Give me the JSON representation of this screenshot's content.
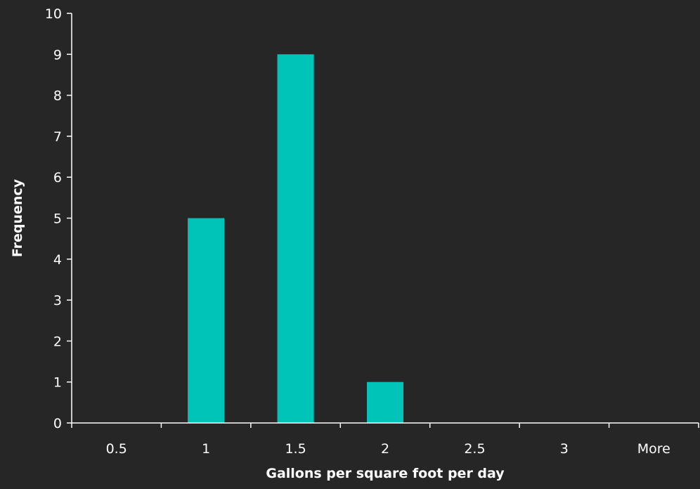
{
  "chart_data": {
    "type": "bar",
    "categories": [
      "0.5",
      "1",
      "1.5",
      "2",
      "2.5",
      "3",
      "More"
    ],
    "values": [
      0,
      5,
      9,
      1,
      0,
      0,
      0
    ],
    "title": "",
    "xlabel": "Gallons per square foot per day",
    "ylabel": "Frequency",
    "ylim": [
      0,
      10
    ],
    "yticks": [
      0,
      1,
      2,
      3,
      4,
      5,
      6,
      7,
      8,
      9,
      10
    ],
    "grid": false,
    "legend": "none",
    "colors": {
      "background": "#262626",
      "bar": "#00c4b8",
      "text": "#ffffff",
      "axis": "#ffffff"
    }
  }
}
